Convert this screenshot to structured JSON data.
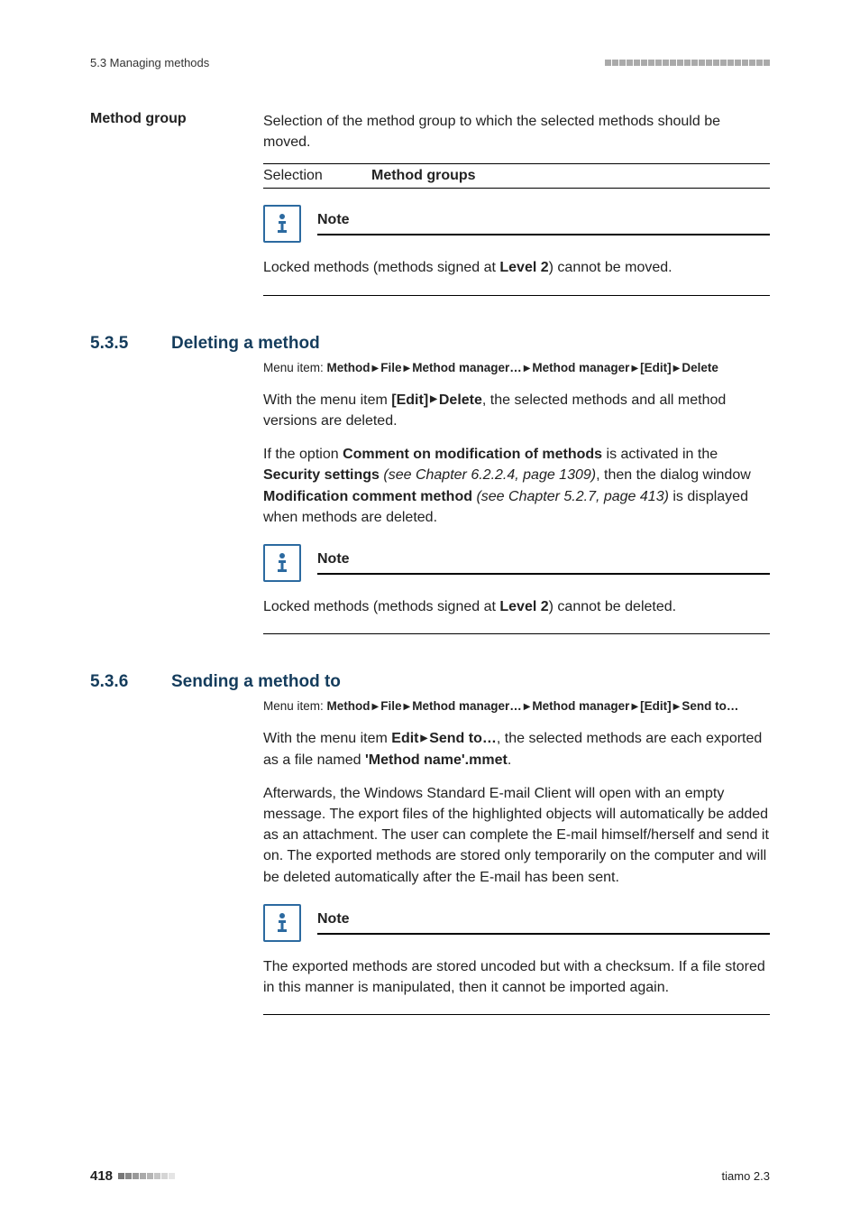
{
  "header": {
    "running_title": "5.3 Managing methods",
    "strip_count": 23,
    "strip_color": "#aaaaaa"
  },
  "method_group": {
    "heading": "Method group",
    "intro": "Selection of the method group to which the selected methods should be moved.",
    "sel_label": "Selection",
    "sel_value": "Method groups",
    "note_title": "Note",
    "note_body_pre": "Locked methods (methods signed at ",
    "note_body_bold": "Level 2",
    "note_body_post": ") cannot be moved."
  },
  "s535": {
    "number": "5.3.5",
    "title": "Deleting a method",
    "menu": {
      "lead": "Menu item: ",
      "p1": "Method",
      "p2": "File",
      "p3": "Method manager…",
      "p4": "Method manager",
      "p5": "[Edit]",
      "p6": "Delete"
    },
    "para1_pre": "With the menu item ",
    "para1_b1": "[Edit]",
    "para1_tri": " ▸ ",
    "para1_b2": "Delete",
    "para1_post": ", the selected methods and all method versions are deleted.",
    "para2_a": "If the option ",
    "para2_b": "Comment on modification of methods",
    "para2_c": " is activated in the ",
    "para2_d": "Security settings",
    "para2_e": " (see Chapter 6.2.2.4, page 1309)",
    "para2_f": ", then the dialog window ",
    "para2_g": "Modification comment method",
    "para2_h": " (see Chapter 5.2.7, page 413)",
    "para2_i": " is displayed when methods are deleted.",
    "note_title": "Note",
    "note_body_pre": "Locked methods (methods signed at ",
    "note_body_bold": "Level 2",
    "note_body_post": ") cannot be deleted."
  },
  "s536": {
    "number": "5.3.6",
    "title": "Sending a method to",
    "menu": {
      "lead": "Menu item: ",
      "p1": "Method",
      "p2": "File",
      "p3": "Method manager…",
      "p4": "Method manager",
      "p5": "[Edit]",
      "p6": "Send to…"
    },
    "para1_pre": "With the menu item ",
    "para1_b1": "Edit",
    "para1_tri": " ▸ ",
    "para1_b2": "Send to…",
    "para1_mid": ", the selected methods are each exported as a file named ",
    "para1_b3": "'Method name'.mmet",
    "para1_post": ".",
    "para2": "Afterwards, the Windows Standard E-mail Client will open with an empty message. The export files of the highlighted objects will automatically be added as an attachment. The user can complete the E-mail himself/herself and send it on. The exported methods are stored only temporarily on the computer and will be deleted automatically after the E-mail has been sent.",
    "note_title": "Note",
    "note_body": "The exported methods are stored uncoded but with a checksum. If a file stored in this manner is manipulated, then it cannot be imported again."
  },
  "footer": {
    "page_number": "418",
    "product": "tiamo 2.3",
    "strip_count": 8
  },
  "icon": {
    "info_color": "#2c6aa0"
  }
}
